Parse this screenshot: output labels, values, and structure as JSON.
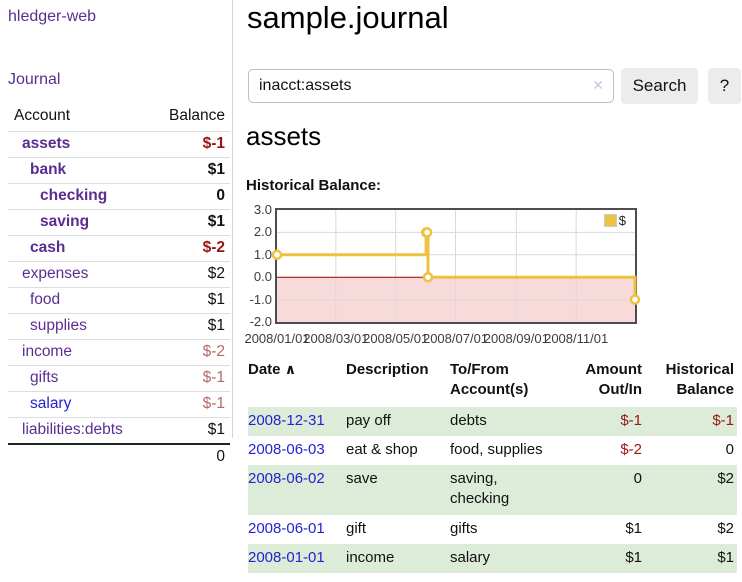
{
  "app": {
    "title": "hledger-web"
  },
  "sidebar": {
    "journal_link": "Journal",
    "accounts": {
      "header": {
        "account": "Account",
        "balance": "Balance"
      },
      "rows": [
        {
          "name": "assets",
          "balance": "$-1",
          "depth": 1,
          "bold": true,
          "balance_style": "neg-strong",
          "link_color": "purple"
        },
        {
          "name": "bank",
          "balance": "$1",
          "depth": 2,
          "bold": true,
          "balance_style": "normal",
          "link_color": "purple"
        },
        {
          "name": "checking",
          "balance": "0",
          "depth": 3,
          "bold": true,
          "balance_style": "normal",
          "link_color": "purple"
        },
        {
          "name": "saving",
          "balance": "$1",
          "depth": 3,
          "bold": true,
          "balance_style": "normal",
          "link_color": "purple"
        },
        {
          "name": "cash",
          "balance": "$-2",
          "depth": 2,
          "bold": true,
          "balance_style": "neg-strong",
          "link_color": "purple"
        },
        {
          "name": "expenses",
          "balance": "$2",
          "depth": 1,
          "bold": false,
          "balance_style": "normal",
          "link_color": "purple"
        },
        {
          "name": "food",
          "balance": "$1",
          "depth": 2,
          "bold": false,
          "balance_style": "normal",
          "link_color": "purple"
        },
        {
          "name": "supplies",
          "balance": "$1",
          "depth": 2,
          "bold": false,
          "balance_style": "normal",
          "link_color": "purple"
        },
        {
          "name": "income",
          "balance": "$-2",
          "depth": 1,
          "bold": false,
          "balance_style": "neg-soft",
          "link_color": "purple"
        },
        {
          "name": "gifts",
          "balance": "$-1",
          "depth": 2,
          "bold": false,
          "balance_style": "neg-soft",
          "link_color": "purple"
        },
        {
          "name": "salary",
          "balance": "$-1",
          "depth": 2,
          "bold": false,
          "balance_style": "neg-soft",
          "link_color": "blue"
        },
        {
          "name": "liabilities:debts",
          "balance": "$1",
          "depth": 1,
          "bold": false,
          "balance_style": "normal",
          "link_color": "purple"
        }
      ],
      "total": "0"
    }
  },
  "main": {
    "title": "sample.journal",
    "search": {
      "value": "inacct:assets",
      "clear_icon": "✕",
      "search_button": "Search",
      "help_button": "?"
    },
    "account_heading": "assets",
    "chart_title": "Historical Balance:"
  },
  "chart_data": {
    "type": "line",
    "step": true,
    "title": "Historical Balance",
    "x_start": "2008-01-01",
    "x_end": "2008-12-31",
    "ylim": [
      -2,
      3
    ],
    "grid": true,
    "y_ticks": [
      {
        "value": 3,
        "label": "3.0"
      },
      {
        "value": 2,
        "label": "2.0"
      },
      {
        "value": 1,
        "label": "1.0"
      },
      {
        "value": 0,
        "label": "0.0"
      },
      {
        "value": -1,
        "label": "-1.0"
      },
      {
        "value": -2,
        "label": "-2.0"
      }
    ],
    "x_ticks": [
      {
        "date": "2008-01-01",
        "label": "2008/01/01"
      },
      {
        "date": "2008-03-01",
        "label": "2008/03/01"
      },
      {
        "date": "2008-05-01",
        "label": "2008/05/01"
      },
      {
        "date": "2008-07-01",
        "label": "2008/07/01"
      },
      {
        "date": "2008-09-01",
        "label": "2008/09/01"
      },
      {
        "date": "2008-11-01",
        "label": "2008/11/01"
      }
    ],
    "series": [
      {
        "name": "$",
        "color": "#edc240",
        "marker_fill": "#ffffff",
        "points": [
          {
            "date": "2008-01-01",
            "value": 1
          },
          {
            "date": "2008-06-01",
            "value": 2
          },
          {
            "date": "2008-06-02",
            "value": 2
          },
          {
            "date": "2008-06-03",
            "value": 0
          },
          {
            "date": "2008-12-31",
            "value": -1
          }
        ]
      }
    ],
    "legend": {
      "label": "$",
      "position": "top-right"
    },
    "colors": {
      "negative_region": "#f8dada",
      "zero_line": "#990000",
      "gridline": "#d9d9d9",
      "border": "#4d4d4d"
    }
  },
  "transactions": {
    "headers": [
      "Date",
      "Description",
      "To/From Account(s)",
      "Amount Out/In",
      "Historical Balance"
    ],
    "sort": {
      "column": "Date",
      "direction": "ascending",
      "icon": "∧"
    },
    "rows": [
      {
        "date": "2008-12-31",
        "description": "pay off",
        "accounts": "debts",
        "amount": "$-1",
        "balance": "$-1",
        "amount_negative": true,
        "balance_negative": true,
        "striped": true
      },
      {
        "date": "2008-06-03",
        "description": "eat & shop",
        "accounts": "food, supplies",
        "amount": "$-2",
        "balance": "0",
        "amount_negative": true,
        "balance_negative": false,
        "striped": false
      },
      {
        "date": "2008-06-02",
        "description": "save",
        "accounts": "saving, checking",
        "amount": "0",
        "balance": "$2",
        "amount_negative": false,
        "balance_negative": false,
        "striped": true
      },
      {
        "date": "2008-06-01",
        "description": "gift",
        "accounts": "gifts",
        "amount": "$1",
        "balance": "$2",
        "amount_negative": false,
        "balance_negative": false,
        "striped": false
      },
      {
        "date": "2008-01-01",
        "description": "income",
        "accounts": "salary",
        "amount": "$1",
        "balance": "$1",
        "amount_negative": false,
        "balance_negative": false,
        "striped": true
      }
    ]
  },
  "colors": {
    "link_purple": "#5b2d90",
    "link_blue": "#2323d0",
    "negative_strong": "#991414",
    "negative_soft": "#b36a6a",
    "row_stripe_green": "#ddecd9",
    "button_bg": "#ececec"
  }
}
